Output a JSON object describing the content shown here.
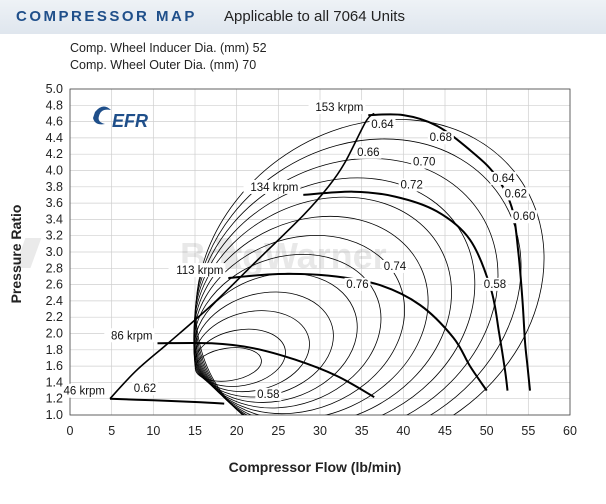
{
  "header": {
    "title": "COMPRESSOR MAP",
    "subtitle": "Applicable to all 7064 Units"
  },
  "specs": {
    "inducer": "Comp. Wheel Inducer Dia. (mm) 52",
    "outer": "Comp. Wheel Outer Dia. (mm) 70"
  },
  "logo": {
    "text": "EFR",
    "watermark": "BorgWarner"
  },
  "colors": {
    "header_title": "#1f4f8a",
    "grid": "#cfcfcf",
    "line": "#000000"
  },
  "chart_data": {
    "type": "line",
    "xlabel": "Compressor Flow (lb/min)",
    "ylabel": "Pressure Ratio",
    "xlim": [
      0,
      60
    ],
    "ylim": [
      1.0,
      5.0
    ],
    "xticks": [
      "0",
      "5",
      "10",
      "15",
      "20",
      "25",
      "30",
      "35",
      "40",
      "45",
      "50",
      "55",
      "60"
    ],
    "yticks": [
      "1.0",
      "1.2",
      "1.4",
      "1.6",
      "1.8",
      "2.0",
      "2.2",
      "2.4",
      "2.6",
      "2.8",
      "3.0",
      "3.2",
      "3.4",
      "3.6",
      "3.8",
      "4.0",
      "4.2",
      "4.4",
      "4.6",
      "4.8",
      "5.0"
    ],
    "grid": true,
    "surge_line": [
      [
        4.8,
        1.2
      ],
      [
        8,
        1.55
      ],
      [
        12,
        1.9
      ],
      [
        17,
        2.35
      ],
      [
        22,
        2.85
      ],
      [
        28,
        3.45
      ],
      [
        31,
        3.8
      ],
      [
        33,
        4.1
      ],
      [
        35.5,
        4.6
      ],
      [
        36.5,
        4.7
      ]
    ],
    "speed_lines": [
      {
        "label": "46 krpm",
        "points": [
          [
            4.8,
            1.2
          ],
          [
            10,
            1.18
          ],
          [
            15,
            1.16
          ],
          [
            18.5,
            1.14
          ]
        ]
      },
      {
        "label": "86 krpm",
        "points": [
          [
            10.5,
            1.88
          ],
          [
            17,
            1.88
          ],
          [
            22,
            1.82
          ],
          [
            27,
            1.68
          ],
          [
            32,
            1.48
          ],
          [
            36.5,
            1.22
          ]
        ]
      },
      {
        "label": "113 krpm",
        "points": [
          [
            19,
            2.68
          ],
          [
            25,
            2.73
          ],
          [
            31,
            2.71
          ],
          [
            37,
            2.6
          ],
          [
            42,
            2.35
          ],
          [
            46,
            1.95
          ],
          [
            48,
            1.6
          ],
          [
            50,
            1.3
          ]
        ]
      },
      {
        "label": "134 krpm",
        "points": [
          [
            28,
            3.7
          ],
          [
            34,
            3.74
          ],
          [
            39,
            3.68
          ],
          [
            44,
            3.5
          ],
          [
            48,
            3.15
          ],
          [
            50.5,
            2.55
          ],
          [
            51.5,
            2.0
          ],
          [
            52.2,
            1.55
          ],
          [
            52.5,
            1.3
          ]
        ]
      },
      {
        "label": "153 krpm",
        "points": [
          [
            35.8,
            4.68
          ],
          [
            40,
            4.68
          ],
          [
            44,
            4.55
          ],
          [
            48,
            4.25
          ],
          [
            51,
            3.95
          ],
          [
            53,
            3.55
          ],
          [
            53.8,
            3.0
          ],
          [
            54.3,
            2.4
          ],
          [
            54.6,
            1.9
          ],
          [
            54.9,
            1.6
          ],
          [
            55.2,
            1.3
          ]
        ]
      }
    ],
    "efficiency_labels": [
      {
        "label": "0.64",
        "x": 37.5,
        "y": 4.52
      },
      {
        "label": "0.68",
        "x": 44.5,
        "y": 4.36
      },
      {
        "label": "0.66",
        "x": 35.8,
        "y": 4.18
      },
      {
        "label": "0.70",
        "x": 42.5,
        "y": 4.06
      },
      {
        "label": "0.72",
        "x": 41,
        "y": 3.78
      },
      {
        "label": "0.64",
        "x": 52,
        "y": 3.86
      },
      {
        "label": "0.62",
        "x": 53.5,
        "y": 3.67
      },
      {
        "label": "0.60",
        "x": 54.5,
        "y": 3.39
      },
      {
        "label": "0.74",
        "x": 39,
        "y": 2.78
      },
      {
        "label": "0.76",
        "x": 34.5,
        "y": 2.56
      },
      {
        "label": "0.58",
        "x": 51,
        "y": 2.56
      },
      {
        "label": "0.62",
        "x": 9,
        "y": 1.28
      },
      {
        "label": "0.58",
        "x": 23.8,
        "y": 1.21
      }
    ]
  }
}
